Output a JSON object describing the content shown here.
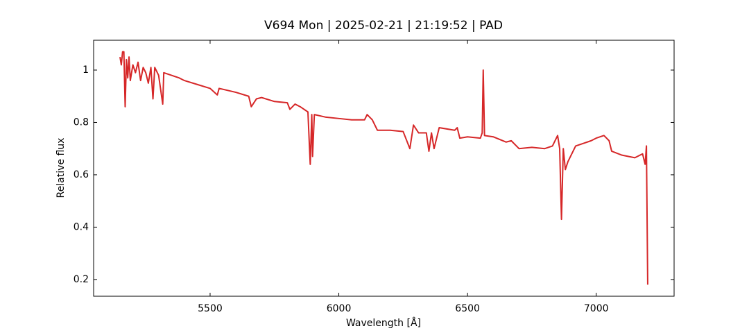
{
  "chart_data": {
    "type": "line",
    "title": "V694 Mon | 2025-02-21 | 21:19:52 | PAD",
    "x_label": "Wavelength [Å]",
    "y_label": "Relative flux",
    "xlim": [
      5047.5,
      7302.5
    ],
    "ylim": [
      0.136,
      1.114
    ],
    "xticks": [
      5500,
      6000,
      6500,
      7000
    ],
    "yticks": [
      0.2,
      0.4,
      0.6,
      0.8,
      1.0
    ],
    "x": [
      5150,
      5155,
      5160,
      5165,
      5170,
      5175,
      5180,
      5185,
      5190,
      5200,
      5210,
      5220,
      5230,
      5240,
      5250,
      5260,
      5270,
      5278,
      5285,
      5300,
      5316,
      5320,
      5350,
      5380,
      5400,
      5450,
      5500,
      5528,
      5535,
      5600,
      5650,
      5660,
      5680,
      5700,
      5750,
      5800,
      5810,
      5830,
      5850,
      5880,
      5889,
      5895,
      5898,
      5905,
      5950,
      6000,
      6050,
      6100,
      6110,
      6130,
      6150,
      6200,
      6250,
      6276,
      6290,
      6310,
      6340,
      6350,
      6360,
      6370,
      6390,
      6450,
      6460,
      6470,
      6500,
      6550,
      6557,
      6561,
      6566,
      6600,
      6650,
      6670,
      6700,
      6750,
      6800,
      6830,
      6850,
      6858,
      6865,
      6872,
      6880,
      6890,
      6920,
      6950,
      6980,
      7000,
      7030,
      7050,
      7060,
      7100,
      7150,
      7180,
      7190,
      7195,
      7200
    ],
    "series": [
      {
        "name": "flux",
        "color": "#d62728",
        "values": [
          1.05,
          1.02,
          1.07,
          1.07,
          0.86,
          1.04,
          0.97,
          1.05,
          0.96,
          1.02,
          0.99,
          1.03,
          0.96,
          1.01,
          0.99,
          0.95,
          1.01,
          0.89,
          1.01,
          0.98,
          0.87,
          0.99,
          0.98,
          0.97,
          0.96,
          0.945,
          0.93,
          0.905,
          0.93,
          0.915,
          0.9,
          0.86,
          0.89,
          0.895,
          0.88,
          0.875,
          0.85,
          0.87,
          0.86,
          0.84,
          0.64,
          0.83,
          0.67,
          0.83,
          0.82,
          0.815,
          0.81,
          0.81,
          0.83,
          0.81,
          0.77,
          0.77,
          0.765,
          0.7,
          0.79,
          0.76,
          0.76,
          0.69,
          0.76,
          0.7,
          0.78,
          0.77,
          0.78,
          0.74,
          0.745,
          0.74,
          0.76,
          1.0,
          0.75,
          0.745,
          0.725,
          0.73,
          0.7,
          0.705,
          0.7,
          0.71,
          0.75,
          0.7,
          0.43,
          0.7,
          0.62,
          0.65,
          0.71,
          0.72,
          0.73,
          0.74,
          0.75,
          0.73,
          0.69,
          0.675,
          0.665,
          0.68,
          0.64,
          0.71,
          0.18
        ]
      }
    ]
  }
}
